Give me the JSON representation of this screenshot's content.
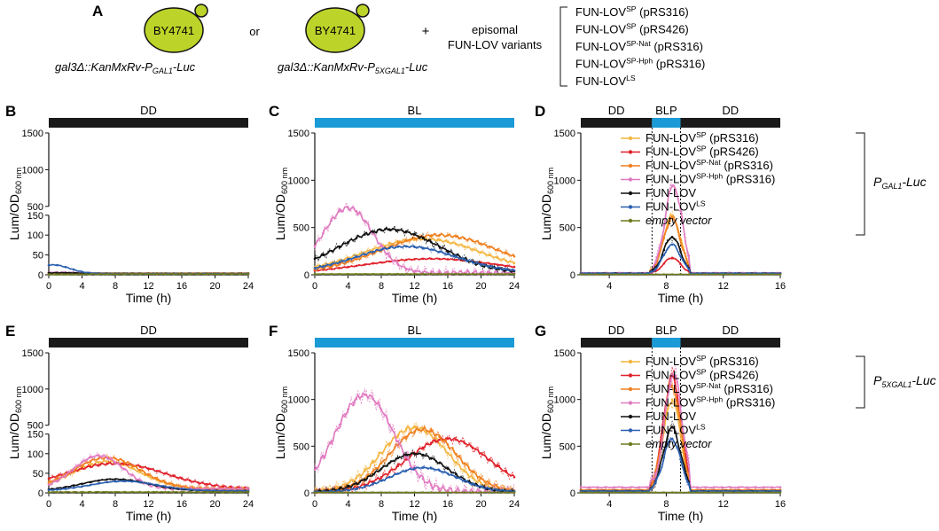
{
  "figure": {
    "label": "A",
    "strain": "BY4741",
    "connector_or": "or",
    "connector_plus": "+",
    "reporter1": {
      "base": "gal3Δ::KanMxRv-P",
      "sub": "GAL1",
      "end": "-Luc"
    },
    "reporter2": {
      "base": "gal3Δ::KanMxRv-P",
      "sub": "5XGAL1",
      "end": "-Luc"
    },
    "episomal_line1": "episomal",
    "episomal_line2": "FUN-LOV variants",
    "variants": [
      {
        "base": "FUN-LOV",
        "sup": "SP",
        "tail": " (pRS316)"
      },
      {
        "base": "FUN-LOV",
        "sup": "SP",
        "tail": " (pRS426)"
      },
      {
        "base": "FUN-LOV",
        "sup": "SP-Nat",
        "tail": " (pRS316)"
      },
      {
        "base": "FUN-LOV",
        "sup": "SP-Hph",
        "tail": " (pRS316)"
      },
      {
        "base": "FUN-LOV",
        "sup": "LS",
        "tail": ""
      }
    ],
    "legend": [
      {
        "base": "FUN-LOV",
        "sup": "SP",
        "tail": " (pRS316)",
        "color": "#f4b642",
        "italic": false
      },
      {
        "base": "FUN-LOV",
        "sup": "SP",
        "tail": " (pRS426)",
        "color": "#e0202a",
        "italic": false
      },
      {
        "base": "FUN-LOV",
        "sup": "SP-Nat",
        "tail": " (pRS316)",
        "color": "#f07f1e",
        "italic": false
      },
      {
        "base": "FUN-LOV",
        "sup": "SP-Hph",
        "tail": " (pRS316)",
        "color": "#e07ac0",
        "italic": false
      },
      {
        "base": "FUN-LOV",
        "sup": "",
        "tail": "",
        "color": "#111111",
        "italic": false
      },
      {
        "base": "FUN-LOV",
        "sup": "LS",
        "tail": "",
        "color": "#2a5fb0",
        "italic": false
      },
      {
        "base": "empty vector",
        "sup": "",
        "tail": "",
        "color": "#6e7a1e",
        "italic": true
      }
    ],
    "promoter_labels": [
      {
        "base": "P",
        "sub": "GAL1",
        "end": "-Luc"
      },
      {
        "base": "P",
        "sub": "5XGAL1",
        "end": "-Luc"
      }
    ],
    "ylabel": {
      "base": "Lum/OD",
      "sub": "600 nm"
    },
    "xlabel": "Time (h)",
    "colors": {
      "dark": "#1a1a1a",
      "blue": "#1a9ad6",
      "yeast": "#bcd42a"
    }
  },
  "chart_data": [
    {
      "id": "B",
      "type": "line",
      "condition": [
        "DD"
      ],
      "xticks": [
        "0",
        "4",
        "8",
        "12",
        "16",
        "20",
        "24"
      ],
      "xlim": [
        0,
        24
      ],
      "yaxis": "broken",
      "yticks_lower": [
        "0",
        "50",
        "100",
        "150"
      ],
      "yticks_upper": [
        "500",
        "1000",
        "1500"
      ],
      "series": [
        {
          "name": "FUN-LOV SP (pRS316)",
          "color": "#f4b642",
          "peak": 5,
          "peak_t": 1,
          "width": 3,
          "base": 4
        },
        {
          "name": "FUN-LOV SP (pRS426)",
          "color": "#e0202a",
          "peak": 4,
          "peak_t": 1,
          "width": 3,
          "base": 3
        },
        {
          "name": "FUN-LOV SP-Nat (pRS316)",
          "color": "#f07f1e",
          "peak": 4,
          "peak_t": 1,
          "width": 3,
          "base": 4
        },
        {
          "name": "FUN-LOV SP-Hph (pRS316)",
          "color": "#e07ac0",
          "peak": 6,
          "peak_t": 1,
          "width": 3,
          "base": 3
        },
        {
          "name": "FUN-LOV",
          "color": "#111111",
          "peak": 5,
          "peak_t": 1,
          "width": 3,
          "base": 3
        },
        {
          "name": "FUN-LOV LS",
          "color": "#2a5fb0",
          "peak": 25,
          "peak_t": 0.5,
          "width": 2,
          "base": 3
        },
        {
          "name": "empty vector",
          "color": "#6e7a1e",
          "peak": 1,
          "peak_t": 1,
          "width": 3,
          "base": 2
        }
      ]
    },
    {
      "id": "C",
      "type": "line",
      "condition": [
        "BL"
      ],
      "xticks": [
        "0",
        "4",
        "8",
        "12",
        "16",
        "20",
        "24"
      ],
      "xlim": [
        0,
        24
      ],
      "yaxis": "linear",
      "yticks": [
        "0",
        "500",
        "1000",
        "1500"
      ],
      "ylim": [
        0,
        1500
      ],
      "series": [
        {
          "name": "FUN-LOV SP (pRS316)",
          "color": "#f4b642",
          "peak": 380,
          "peak_t": 13,
          "width": 7,
          "base": 20
        },
        {
          "name": "FUN-LOV SP (pRS426)",
          "color": "#e0202a",
          "peak": 170,
          "peak_t": 14,
          "width": 8,
          "base": 10
        },
        {
          "name": "FUN-LOV SP-Nat (pRS316)",
          "color": "#f07f1e",
          "peak": 420,
          "peak_t": 15,
          "width": 7,
          "base": 20
        },
        {
          "name": "FUN-LOV SP-Hph (pRS316)",
          "color": "#e07ac0",
          "peak": 710,
          "peak_t": 4,
          "width": 3,
          "base": 20
        },
        {
          "name": "FUN-LOV",
          "color": "#111111",
          "peak": 480,
          "peak_t": 9,
          "width": 6,
          "base": 20
        },
        {
          "name": "FUN-LOV LS",
          "color": "#2a5fb0",
          "peak": 300,
          "peak_t": 11,
          "width": 6,
          "base": 20
        },
        {
          "name": "empty vector",
          "color": "#6e7a1e",
          "peak": 8,
          "peak_t": 12,
          "width": 20,
          "base": 5
        }
      ]
    },
    {
      "id": "D",
      "type": "line",
      "condition": [
        "DD",
        "BLP",
        "DD"
      ],
      "xticks": [
        "4",
        "8",
        "12",
        "16"
      ],
      "xlim": [
        2,
        16
      ],
      "yaxis": "linear",
      "yticks": [
        "0",
        "500",
        "1000",
        "1500"
      ],
      "ylim": [
        0,
        1500
      ],
      "pulse": [
        7,
        9
      ],
      "series": [
        {
          "name": "FUN-LOV SP (pRS316)",
          "color": "#f4b642",
          "peak": 620,
          "peak_t": 8.4,
          "width": 0.6,
          "base": 15
        },
        {
          "name": "FUN-LOV SP (pRS426)",
          "color": "#e0202a",
          "peak": 180,
          "peak_t": 8.4,
          "width": 0.6,
          "base": 10
        },
        {
          "name": "FUN-LOV SP-Nat (pRS316)",
          "color": "#f07f1e",
          "peak": 600,
          "peak_t": 8.4,
          "width": 0.6,
          "base": 15
        },
        {
          "name": "FUN-LOV SP-Hph (pRS316)",
          "color": "#e07ac0",
          "peak": 950,
          "peak_t": 8.5,
          "width": 0.6,
          "base": 20
        },
        {
          "name": "FUN-LOV",
          "color": "#111111",
          "peak": 400,
          "peak_t": 8.4,
          "width": 0.6,
          "base": 15
        },
        {
          "name": "FUN-LOV LS",
          "color": "#2a5fb0",
          "peak": 320,
          "peak_t": 8.4,
          "width": 0.6,
          "base": 15
        },
        {
          "name": "empty vector",
          "color": "#6e7a1e",
          "peak": 5,
          "peak_t": 8,
          "width": 3,
          "base": 5
        }
      ]
    },
    {
      "id": "E",
      "type": "line",
      "condition": [
        "DD"
      ],
      "xticks": [
        "0",
        "4",
        "8",
        "12",
        "16",
        "20",
        "24"
      ],
      "xlim": [
        0,
        24
      ],
      "yaxis": "broken",
      "yticks_lower": [
        "0",
        "50",
        "100",
        "150"
      ],
      "yticks_upper": [
        "500",
        "1000",
        "1500"
      ],
      "series": [
        {
          "name": "FUN-LOV SP (pRS316)",
          "color": "#f4b642",
          "peak": 80,
          "peak_t": 7,
          "width": 4,
          "base": 10
        },
        {
          "name": "FUN-LOV SP (pRS426)",
          "color": "#e0202a",
          "peak": 75,
          "peak_t": 8,
          "width": 6,
          "base": 10
        },
        {
          "name": "FUN-LOV SP-Nat (pRS316)",
          "color": "#f07f1e",
          "peak": 90,
          "peak_t": 7,
          "width": 4,
          "base": 10
        },
        {
          "name": "FUN-LOV SP-Hph (pRS316)",
          "color": "#e07ac0",
          "peak": 95,
          "peak_t": 6,
          "width": 3,
          "base": 10
        },
        {
          "name": "FUN-LOV",
          "color": "#111111",
          "peak": 35,
          "peak_t": 8,
          "width": 4,
          "base": 5
        },
        {
          "name": "FUN-LOV LS",
          "color": "#2a5fb0",
          "peak": 30,
          "peak_t": 9,
          "width": 4,
          "base": 5
        },
        {
          "name": "empty vector",
          "color": "#6e7a1e",
          "peak": 2,
          "peak_t": 8,
          "width": 10,
          "base": 2
        }
      ]
    },
    {
      "id": "F",
      "type": "line",
      "condition": [
        "BL"
      ],
      "xticks": [
        "0",
        "4",
        "8",
        "12",
        "16",
        "20",
        "24"
      ],
      "xlim": [
        0,
        24
      ],
      "yaxis": "linear",
      "yticks": [
        "0",
        "500",
        "1000",
        "1500"
      ],
      "ylim": [
        0,
        1500
      ],
      "series": [
        {
          "name": "FUN-LOV SP (pRS316)",
          "color": "#f4b642",
          "peak": 700,
          "peak_t": 12,
          "width": 4,
          "base": 10
        },
        {
          "name": "FUN-LOV SP (pRS426)",
          "color": "#e0202a",
          "peak": 580,
          "peak_t": 16,
          "width": 5,
          "base": 10
        },
        {
          "name": "FUN-LOV SP-Nat (pRS316)",
          "color": "#f07f1e",
          "peak": 680,
          "peak_t": 13,
          "width": 4,
          "base": 10
        },
        {
          "name": "FUN-LOV SP-Hph (pRS316)",
          "color": "#e07ac0",
          "peak": 1050,
          "peak_t": 6,
          "width": 3.5,
          "base": 10
        },
        {
          "name": "FUN-LOV",
          "color": "#111111",
          "peak": 420,
          "peak_t": 12,
          "width": 4,
          "base": 10
        },
        {
          "name": "FUN-LOV LS",
          "color": "#2a5fb0",
          "peak": 270,
          "peak_t": 13,
          "width": 4,
          "base": 10
        },
        {
          "name": "empty vector",
          "color": "#6e7a1e",
          "peak": 5,
          "peak_t": 12,
          "width": 20,
          "base": 5
        }
      ]
    },
    {
      "id": "G",
      "type": "line",
      "condition": [
        "DD",
        "BLP",
        "DD"
      ],
      "xticks": [
        "4",
        "8",
        "12",
        "16"
      ],
      "xlim": [
        2,
        16
      ],
      "yaxis": "linear",
      "yticks": [
        "0",
        "500",
        "1000",
        "1500"
      ],
      "ylim": [
        0,
        1500
      ],
      "pulse": [
        7,
        9
      ],
      "series": [
        {
          "name": "FUN-LOV SP (pRS316)",
          "color": "#f4b642",
          "peak": 1000,
          "peak_t": 8.4,
          "width": 0.6,
          "base": 30
        },
        {
          "name": "FUN-LOV SP (pRS426)",
          "color": "#e0202a",
          "peak": 1250,
          "peak_t": 8.4,
          "width": 0.6,
          "base": 30
        },
        {
          "name": "FUN-LOV SP-Nat (pRS316)",
          "color": "#f07f1e",
          "peak": 1150,
          "peak_t": 8.4,
          "width": 0.6,
          "base": 30
        },
        {
          "name": "FUN-LOV SP-Hph (pRS316)",
          "color": "#e07ac0",
          "peak": 1280,
          "peak_t": 8.5,
          "width": 0.6,
          "base": 60
        },
        {
          "name": "FUN-LOV",
          "color": "#111111",
          "peak": 700,
          "peak_t": 8.4,
          "width": 0.6,
          "base": 20
        },
        {
          "name": "FUN-LOV LS",
          "color": "#2a5fb0",
          "peak": 580,
          "peak_t": 8.4,
          "width": 0.6,
          "base": 20
        },
        {
          "name": "empty vector",
          "color": "#6e7a1e",
          "peak": 5,
          "peak_t": 8,
          "width": 3,
          "base": 5
        }
      ]
    }
  ]
}
